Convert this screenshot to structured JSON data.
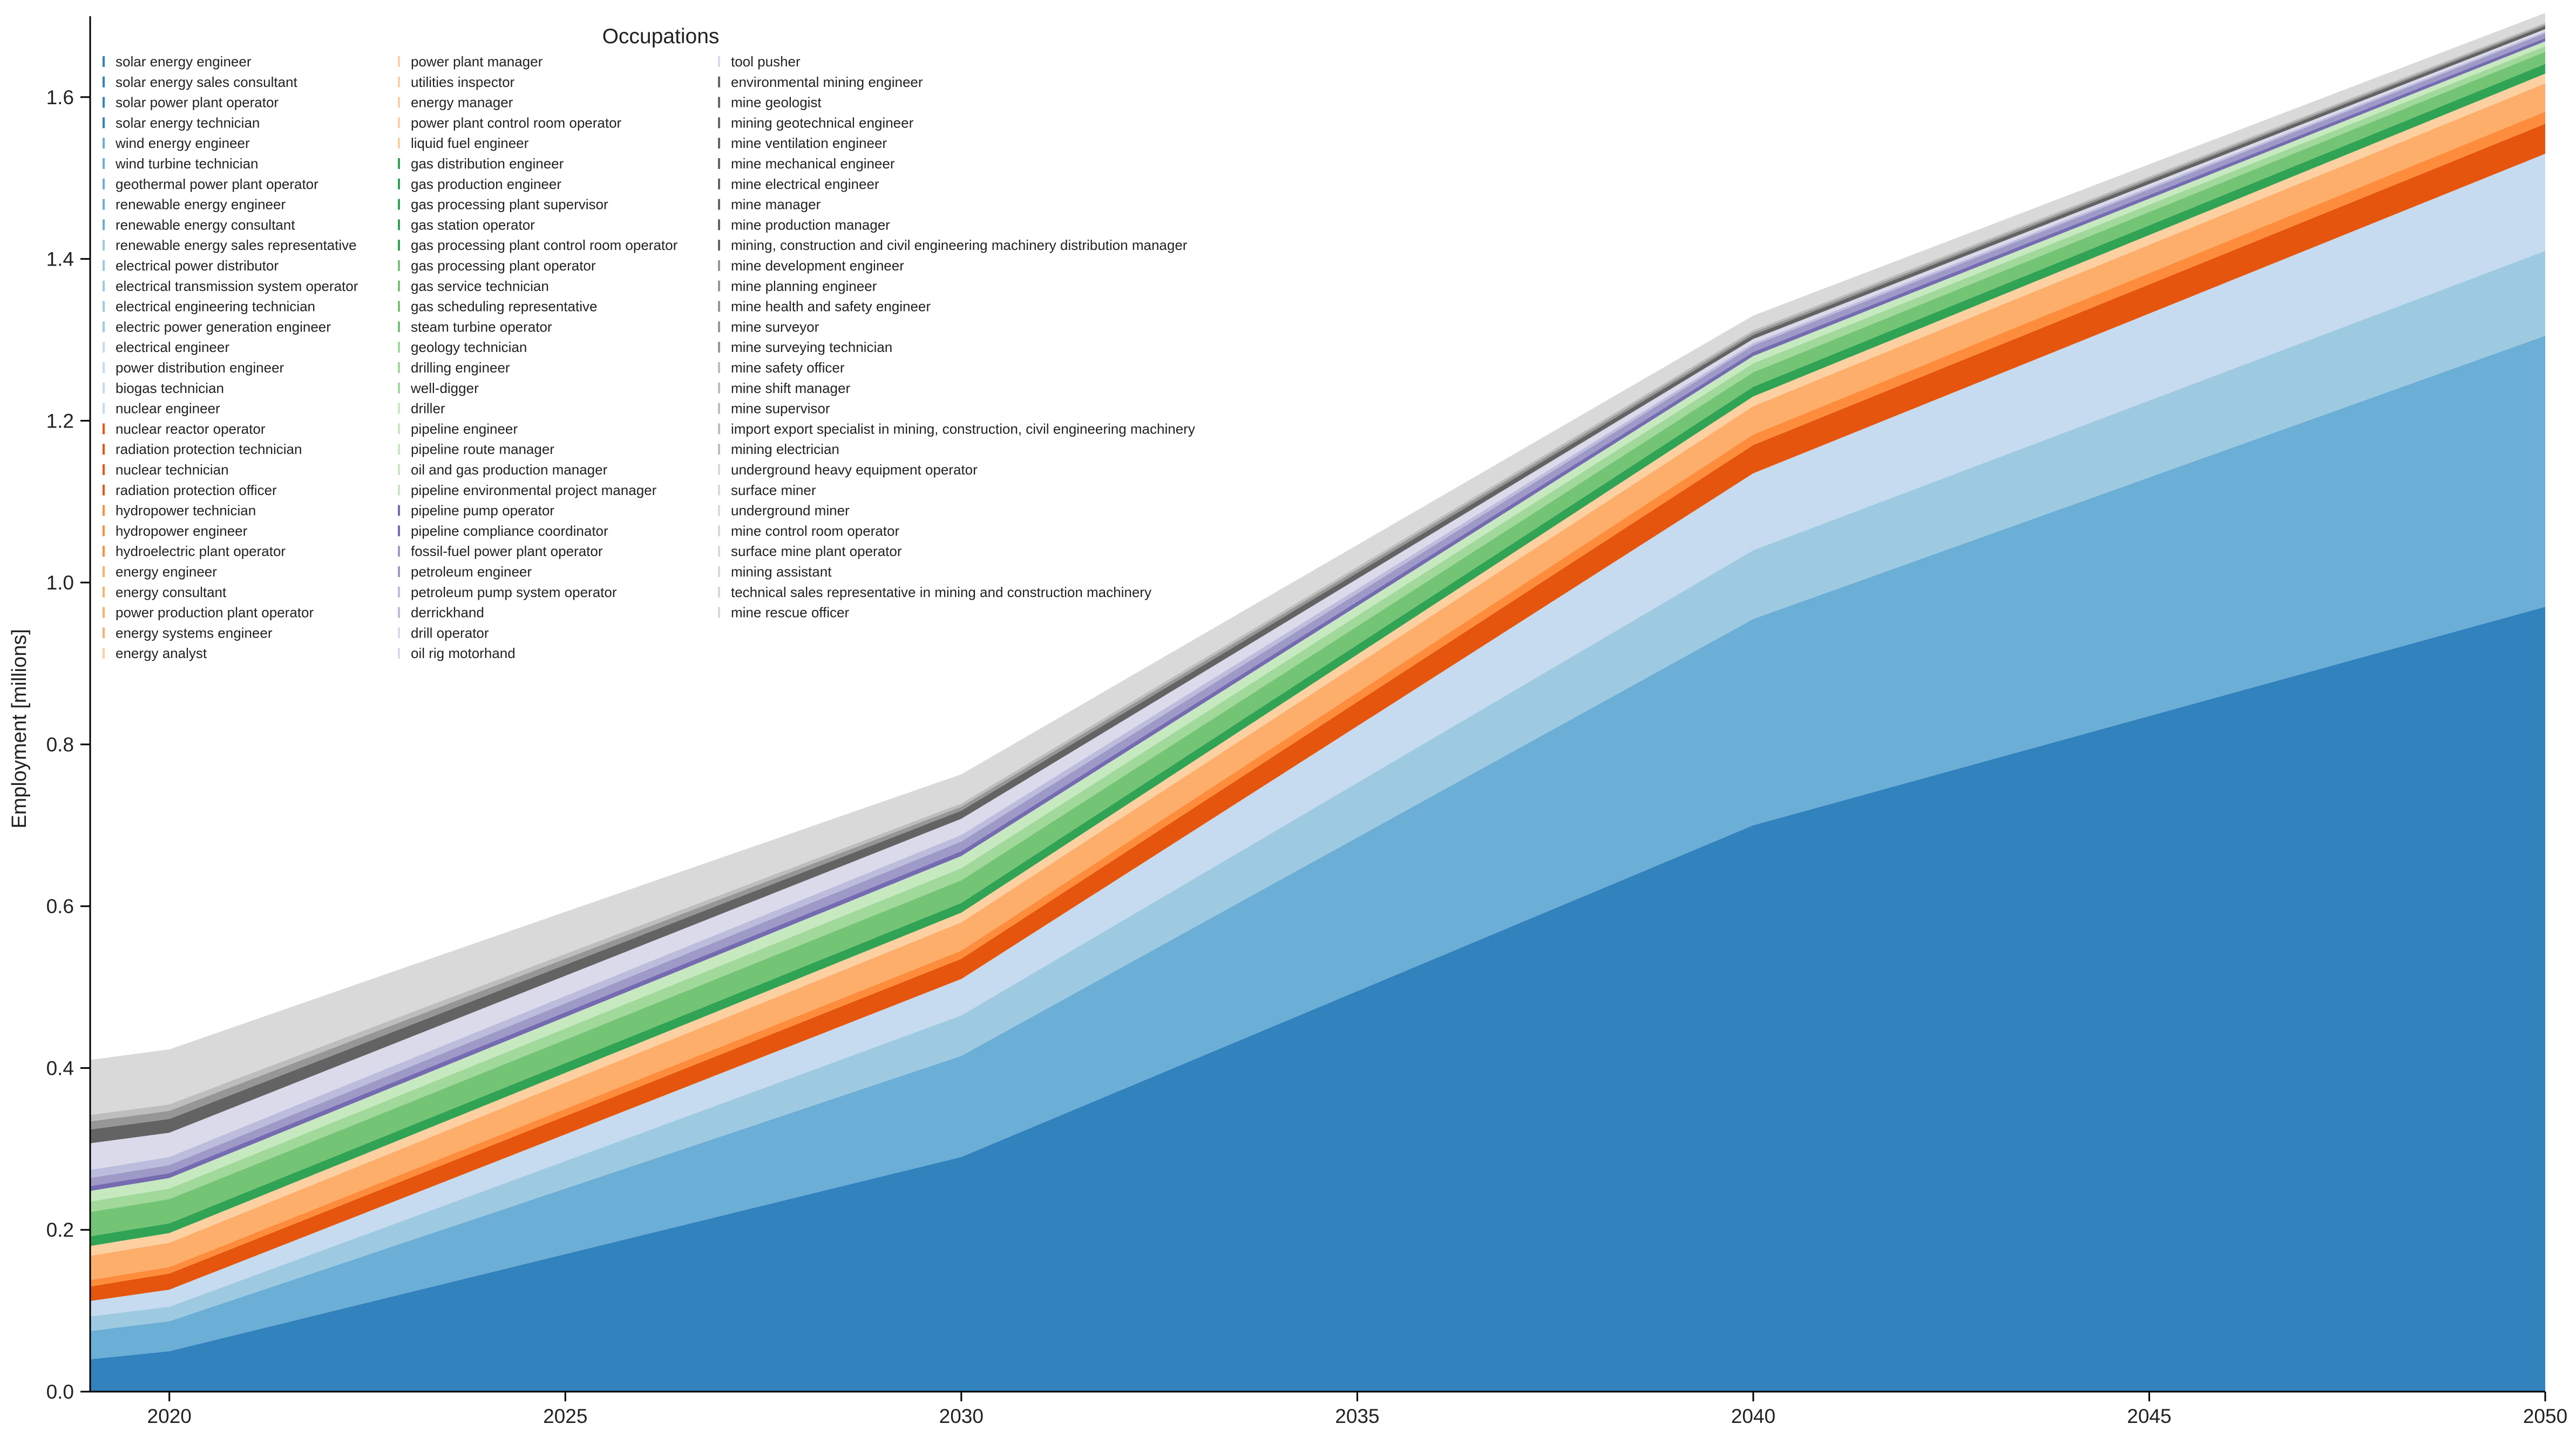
{
  "chart_data": {
    "type": "area",
    "stacked": true,
    "title": "",
    "xlabel": "",
    "ylabel": "Employment [millions]",
    "xlim": [
      2019,
      2050
    ],
    "ylim": [
      0,
      1.7
    ],
    "x": [
      2019,
      2020,
      2030,
      2040,
      2050
    ],
    "x_ticks": [
      2020,
      2025,
      2030,
      2035,
      2040,
      2045,
      2050
    ],
    "x_tick_labels": [
      "2020",
      "2025",
      "2030",
      "2035",
      "2040",
      "2045",
      "2050"
    ],
    "y_ticks": [
      0.0,
      0.2,
      0.4,
      0.6,
      0.8,
      1.0,
      1.2,
      1.4,
      1.6
    ],
    "y_tick_labels": [
      "0.0",
      "0.2",
      "0.4",
      "0.6",
      "0.8",
      "1.0",
      "1.2",
      "1.4",
      "1.6"
    ],
    "grid": false,
    "legend": {
      "title": "Occupations",
      "placement": "top-left",
      "columns": 3
    },
    "series": [
      {
        "name": "solar energy engineer",
        "color": "#3182bd",
        "values": [
          0.04,
          0.05,
          0.29,
          0.7,
          0.97
        ]
      },
      {
        "name": "solar energy sales consultant",
        "color": "#3182bd",
        "values": [
          0.0,
          0.0,
          0.0,
          0.0,
          0.0
        ]
      },
      {
        "name": "solar power plant operator",
        "color": "#3182bd",
        "values": [
          0.0,
          0.0,
          0.0,
          0.0,
          0.0
        ]
      },
      {
        "name": "solar energy technician",
        "color": "#3182bd",
        "values": [
          0.0,
          0.0,
          0.0,
          0.0,
          0.0
        ]
      },
      {
        "name": "wind energy engineer",
        "color": "#6baed6",
        "values": [
          0.035,
          0.037,
          0.125,
          0.255,
          0.335
        ]
      },
      {
        "name": "wind turbine technician",
        "color": "#6baed6",
        "values": [
          0.0,
          0.0,
          0.0,
          0.0,
          0.0
        ]
      },
      {
        "name": "geothermal power plant operator",
        "color": "#6baed6",
        "values": [
          0.0,
          0.0,
          0.0,
          0.0,
          0.0
        ]
      },
      {
        "name": "renewable energy engineer",
        "color": "#6baed6",
        "values": [
          0.0,
          0.0,
          0.0,
          0.0,
          0.0
        ]
      },
      {
        "name": "renewable energy consultant",
        "color": "#6baed6",
        "values": [
          0.0,
          0.0,
          0.0,
          0.0,
          0.0
        ]
      },
      {
        "name": "renewable energy sales representative",
        "color": "#9ecae1",
        "values": [
          0.018,
          0.018,
          0.05,
          0.085,
          0.105
        ]
      },
      {
        "name": "electrical power distributor",
        "color": "#9ecae1",
        "values": [
          0.0,
          0.0,
          0.0,
          0.0,
          0.0
        ]
      },
      {
        "name": "electrical transmission system operator",
        "color": "#9ecae1",
        "values": [
          0.0,
          0.0,
          0.0,
          0.0,
          0.0
        ]
      },
      {
        "name": "electrical engineering technician",
        "color": "#9ecae1",
        "values": [
          0.0,
          0.0,
          0.0,
          0.0,
          0.0
        ]
      },
      {
        "name": "electric power generation engineer",
        "color": "#9ecae1",
        "values": [
          0.0,
          0.0,
          0.0,
          0.0,
          0.0
        ]
      },
      {
        "name": "electrical engineer",
        "color": "#c6dbef",
        "values": [
          0.019,
          0.021,
          0.045,
          0.095,
          0.12
        ]
      },
      {
        "name": "power distribution engineer",
        "color": "#c6dbef",
        "values": [
          0.0,
          0.0,
          0.0,
          0.0,
          0.0
        ]
      },
      {
        "name": "biogas technician",
        "color": "#c6dbef",
        "values": [
          0.0,
          0.0,
          0.0,
          0.0,
          0.0
        ]
      },
      {
        "name": "nuclear engineer",
        "color": "#c6dbef",
        "values": [
          0.0,
          0.0,
          0.0,
          0.0,
          0.0
        ]
      },
      {
        "name": "nuclear reactor operator",
        "color": "#e6550d",
        "values": [
          0.018,
          0.02,
          0.025,
          0.035,
          0.037
        ]
      },
      {
        "name": "radiation protection technician",
        "color": "#e6550d",
        "values": [
          0.0,
          0.0,
          0.0,
          0.0,
          0.0
        ]
      },
      {
        "name": "nuclear technician",
        "color": "#e6550d",
        "values": [
          0.0,
          0.0,
          0.0,
          0.0,
          0.0
        ]
      },
      {
        "name": "radiation protection officer",
        "color": "#e6550d",
        "values": [
          0.0,
          0.0,
          0.0,
          0.0,
          0.0
        ]
      },
      {
        "name": "hydropower technician",
        "color": "#fd8d3c",
        "values": [
          0.008,
          0.008,
          0.01,
          0.013,
          0.015
        ]
      },
      {
        "name": "hydropower engineer",
        "color": "#fd8d3c",
        "values": [
          0.0,
          0.0,
          0.0,
          0.0,
          0.0
        ]
      },
      {
        "name": "hydroelectric plant operator",
        "color": "#fd8d3c",
        "values": [
          0.0,
          0.0,
          0.0,
          0.0,
          0.0
        ]
      },
      {
        "name": "energy engineer",
        "color": "#fdae6b",
        "values": [
          0.03,
          0.03,
          0.035,
          0.035,
          0.035
        ]
      },
      {
        "name": "energy consultant",
        "color": "#fdae6b",
        "values": [
          0.0,
          0.0,
          0.0,
          0.0,
          0.0
        ]
      },
      {
        "name": "power production plant operator",
        "color": "#fdae6b",
        "values": [
          0.0,
          0.0,
          0.0,
          0.0,
          0.0
        ]
      },
      {
        "name": "energy systems engineer",
        "color": "#fdae6b",
        "values": [
          0.0,
          0.0,
          0.0,
          0.0,
          0.0
        ]
      },
      {
        "name": "energy analyst",
        "color": "#fdd0a2",
        "values": [
          0.012,
          0.012,
          0.012,
          0.012,
          0.012
        ]
      },
      {
        "name": "power plant manager",
        "color": "#fdd0a2",
        "values": [
          0.0,
          0.0,
          0.0,
          0.0,
          0.0
        ]
      },
      {
        "name": "utilities inspector",
        "color": "#fdd0a2",
        "values": [
          0.0,
          0.0,
          0.0,
          0.0,
          0.0
        ]
      },
      {
        "name": "energy manager",
        "color": "#fdd0a2",
        "values": [
          0.0,
          0.0,
          0.0,
          0.0,
          0.0
        ]
      },
      {
        "name": "power plant control room operator",
        "color": "#fdd0a2",
        "values": [
          0.0,
          0.0,
          0.0,
          0.0,
          0.0
        ]
      },
      {
        "name": "liquid fuel engineer",
        "color": "#fdd0a2",
        "values": [
          0.0,
          0.0,
          0.0,
          0.0,
          0.0
        ]
      },
      {
        "name": "gas distribution engineer",
        "color": "#31a354",
        "values": [
          0.012,
          0.012,
          0.012,
          0.012,
          0.012
        ]
      },
      {
        "name": "gas production engineer",
        "color": "#31a354",
        "values": [
          0.0,
          0.0,
          0.0,
          0.0,
          0.0
        ]
      },
      {
        "name": "gas processing plant supervisor",
        "color": "#31a354",
        "values": [
          0.0,
          0.0,
          0.0,
          0.0,
          0.0
        ]
      },
      {
        "name": "gas station operator",
        "color": "#31a354",
        "values": [
          0.0,
          0.0,
          0.0,
          0.0,
          0.0
        ]
      },
      {
        "name": "gas processing plant control room operator",
        "color": "#31a354",
        "values": [
          0.0,
          0.0,
          0.0,
          0.0,
          0.0
        ]
      },
      {
        "name": "gas processing plant operator",
        "color": "#74c476",
        "values": [
          0.03,
          0.03,
          0.028,
          0.018,
          0.015
        ]
      },
      {
        "name": "gas service technician",
        "color": "#74c476",
        "values": [
          0.0,
          0.0,
          0.0,
          0.0,
          0.0
        ]
      },
      {
        "name": "gas scheduling representative",
        "color": "#74c476",
        "values": [
          0.0,
          0.0,
          0.0,
          0.0,
          0.0
        ]
      },
      {
        "name": "steam turbine operator",
        "color": "#74c476",
        "values": [
          0.0,
          0.0,
          0.0,
          0.0,
          0.0
        ]
      },
      {
        "name": "geology technician",
        "color": "#a1d99b",
        "values": [
          0.013,
          0.013,
          0.015,
          0.011,
          0.007
        ]
      },
      {
        "name": "drilling engineer",
        "color": "#a1d99b",
        "values": [
          0.0,
          0.0,
          0.0,
          0.0,
          0.0
        ]
      },
      {
        "name": "well-digger",
        "color": "#a1d99b",
        "values": [
          0.0,
          0.0,
          0.0,
          0.0,
          0.0
        ]
      },
      {
        "name": "driller",
        "color": "#c7e9c0",
        "values": [
          0.013,
          0.013,
          0.015,
          0.009,
          0.006
        ]
      },
      {
        "name": "pipeline engineer",
        "color": "#c7e9c0",
        "values": [
          0.0,
          0.0,
          0.0,
          0.0,
          0.0
        ]
      },
      {
        "name": "pipeline route manager",
        "color": "#c7e9c0",
        "values": [
          0.0,
          0.0,
          0.0,
          0.0,
          0.0
        ]
      },
      {
        "name": "oil and gas production manager",
        "color": "#c7e9c0",
        "values": [
          0.0,
          0.0,
          0.0,
          0.0,
          0.0
        ]
      },
      {
        "name": "pipeline environmental project manager",
        "color": "#c7e9c0",
        "values": [
          0.0,
          0.0,
          0.0,
          0.0,
          0.0
        ]
      },
      {
        "name": "pipeline pump operator",
        "color": "#756bb1",
        "values": [
          0.006,
          0.006,
          0.006,
          0.005,
          0.004
        ]
      },
      {
        "name": "pipeline compliance coordinator",
        "color": "#756bb1",
        "values": [
          0.0,
          0.0,
          0.0,
          0.0,
          0.0
        ]
      },
      {
        "name": "fossil-fuel power plant operator",
        "color": "#9e9ac8",
        "values": [
          0.01,
          0.01,
          0.012,
          0.008,
          0.006
        ]
      },
      {
        "name": "petroleum engineer",
        "color": "#9e9ac8",
        "values": [
          0.0,
          0.0,
          0.0,
          0.0,
          0.0
        ]
      },
      {
        "name": "petroleum pump system operator",
        "color": "#bcbddc",
        "values": [
          0.01,
          0.01,
          0.008,
          0.003,
          0.002
        ]
      },
      {
        "name": "derrickhand",
        "color": "#bcbddc",
        "values": [
          0.0,
          0.0,
          0.0,
          0.0,
          0.0
        ]
      },
      {
        "name": "drill operator",
        "color": "#dadaeb",
        "values": [
          0.033,
          0.03,
          0.02,
          0.005,
          0.003
        ]
      },
      {
        "name": "oil rig motorhand",
        "color": "#dadaeb",
        "values": [
          0.0,
          0.0,
          0.0,
          0.0,
          0.0
        ]
      },
      {
        "name": "tool pusher",
        "color": "#dadaeb",
        "values": [
          0.0,
          0.0,
          0.0,
          0.0,
          0.0
        ]
      },
      {
        "name": "environmental mining engineer",
        "color": "#636363",
        "values": [
          0.017,
          0.017,
          0.01,
          0.005,
          0.004
        ]
      },
      {
        "name": "mine geologist",
        "color": "#636363",
        "values": [
          0.0,
          0.0,
          0.0,
          0.0,
          0.0
        ]
      },
      {
        "name": "mining geotechnical engineer",
        "color": "#636363",
        "values": [
          0.0,
          0.0,
          0.0,
          0.0,
          0.0
        ]
      },
      {
        "name": "mine ventilation engineer",
        "color": "#636363",
        "values": [
          0.0,
          0.0,
          0.0,
          0.0,
          0.0
        ]
      },
      {
        "name": "mine mechanical engineer",
        "color": "#636363",
        "values": [
          0.0,
          0.0,
          0.0,
          0.0,
          0.0
        ]
      },
      {
        "name": "mine electrical engineer",
        "color": "#636363",
        "values": [
          0.0,
          0.0,
          0.0,
          0.0,
          0.0
        ]
      },
      {
        "name": "mine manager",
        "color": "#636363",
        "values": [
          0.0,
          0.0,
          0.0,
          0.0,
          0.0
        ]
      },
      {
        "name": "mine production manager",
        "color": "#636363",
        "values": [
          0.0,
          0.0,
          0.0,
          0.0,
          0.0
        ]
      },
      {
        "name": "mining, construction and civil engineering machinery distribution manager",
        "color": "#636363",
        "values": [
          0.0,
          0.0,
          0.0,
          0.0,
          0.0
        ]
      },
      {
        "name": "mine development engineer",
        "color": "#969696",
        "values": [
          0.01,
          0.01,
          0.005,
          0.003,
          0.002
        ]
      },
      {
        "name": "mine planning engineer",
        "color": "#969696",
        "values": [
          0.0,
          0.0,
          0.0,
          0.0,
          0.0
        ]
      },
      {
        "name": "mine health and safety engineer",
        "color": "#969696",
        "values": [
          0.0,
          0.0,
          0.0,
          0.0,
          0.0
        ]
      },
      {
        "name": "mine surveyor",
        "color": "#969696",
        "values": [
          0.0,
          0.0,
          0.0,
          0.0,
          0.0
        ]
      },
      {
        "name": "mine surveying technician",
        "color": "#969696",
        "values": [
          0.0,
          0.0,
          0.0,
          0.0,
          0.0
        ]
      },
      {
        "name": "mine safety officer",
        "color": "#bdbdbd",
        "values": [
          0.008,
          0.008,
          0.004,
          0.003,
          0.002
        ]
      },
      {
        "name": "mine shift manager",
        "color": "#bdbdbd",
        "values": [
          0.0,
          0.0,
          0.0,
          0.0,
          0.0
        ]
      },
      {
        "name": "mine supervisor",
        "color": "#bdbdbd",
        "values": [
          0.0,
          0.0,
          0.0,
          0.0,
          0.0
        ]
      },
      {
        "name": "import export specialist in mining, construction, civil engineering machinery",
        "color": "#bdbdbd",
        "values": [
          0.0,
          0.0,
          0.0,
          0.0,
          0.0
        ]
      },
      {
        "name": "mining electrician",
        "color": "#bdbdbd",
        "values": [
          0.0,
          0.0,
          0.0,
          0.0,
          0.0
        ]
      },
      {
        "name": "underground heavy equipment operator",
        "color": "#d9d9d9",
        "values": [
          0.068,
          0.068,
          0.036,
          0.018,
          0.012
        ]
      },
      {
        "name": "surface miner",
        "color": "#d9d9d9",
        "values": [
          0.0,
          0.0,
          0.0,
          0.0,
          0.0
        ]
      },
      {
        "name": "underground miner",
        "color": "#d9d9d9",
        "values": [
          0.0,
          0.0,
          0.0,
          0.0,
          0.0
        ]
      },
      {
        "name": "mine control room operator",
        "color": "#d9d9d9",
        "values": [
          0.0,
          0.0,
          0.0,
          0.0,
          0.0
        ]
      },
      {
        "name": "surface mine plant operator",
        "color": "#d9d9d9",
        "values": [
          0.0,
          0.0,
          0.0,
          0.0,
          0.0
        ]
      },
      {
        "name": "mining assistant",
        "color": "#d9d9d9",
        "values": [
          0.0,
          0.0,
          0.0,
          0.0,
          0.0
        ]
      },
      {
        "name": "technical sales representative in mining and construction machinery",
        "color": "#d9d9d9",
        "values": [
          0.0,
          0.0,
          0.0,
          0.0,
          0.0
        ]
      },
      {
        "name": "mine rescue officer",
        "color": "#d9d9d9",
        "values": [
          0.0,
          0.0,
          0.0,
          0.0,
          0.0
        ]
      }
    ]
  }
}
